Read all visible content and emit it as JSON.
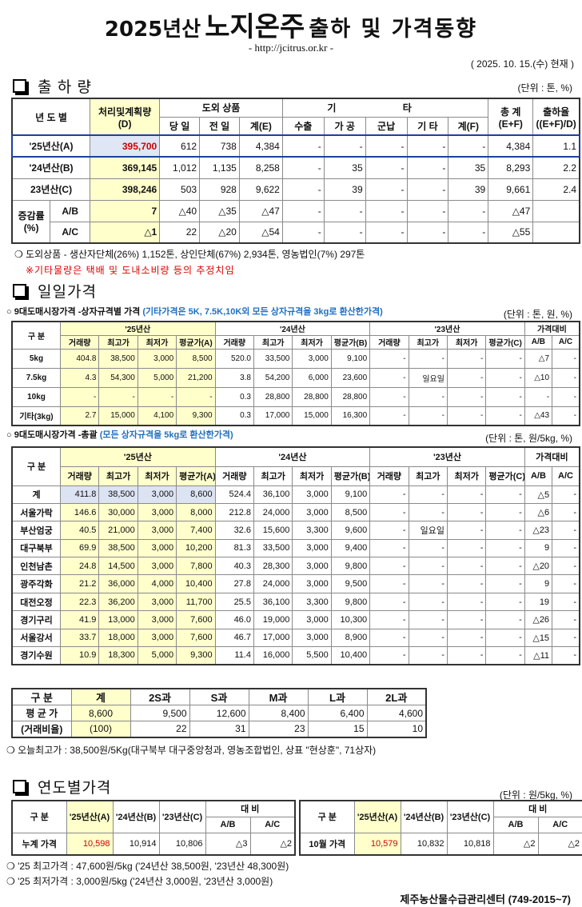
{
  "header": {
    "title_parts": [
      "2025년산",
      "노지온주",
      "출하 및 가격동향"
    ],
    "url": "- http://jcitrus.or.kr -",
    "date": "( 2025.  10. 15.(수) 현재 )"
  },
  "shipment": {
    "heading": "출 하 량",
    "unit": "(단위 : 톤, %)",
    "columns": {
      "year": "년 도 별",
      "plan": [
        "처리및계획량",
        "(D)"
      ],
      "outside": "도외 상품",
      "outside_cols": [
        "당 일",
        "전 일",
        "계(E)"
      ],
      "other": "기 타",
      "other_cols": [
        "수출",
        "가 공",
        "군납",
        "기 타",
        "계(F)"
      ],
      "total": [
        "총 계",
        "(E+F)"
      ],
      "rate": [
        "출하율",
        "((E+F)/D)"
      ]
    },
    "rows": [
      {
        "label": "'25년산(A)",
        "values": [
          "395,700",
          "612",
          "738",
          "4,384",
          "-",
          "-",
          "-",
          "-",
          "-",
          "4,384",
          "1.1"
        ]
      },
      {
        "label": "'24년산(B)",
        "values": [
          "369,145",
          "1,012",
          "1,135",
          "8,258",
          "-",
          "35",
          "-",
          "-",
          "35",
          "8,293",
          "2.2"
        ]
      },
      {
        "label": "23년산(C)",
        "values": [
          "398,246",
          "503",
          "928",
          "9,622",
          "-",
          "39",
          "-",
          "-",
          "39",
          "9,661",
          "2.4"
        ]
      }
    ],
    "change": {
      "title": "증감률",
      "unit": "(%)",
      "rows": [
        {
          "label": "A/B",
          "values": [
            "7",
            "△40",
            "△35",
            "△47",
            "-",
            "-",
            "-",
            "-",
            "-",
            "△47"
          ]
        },
        {
          "label": "A/C",
          "values": [
            "△1",
            "22",
            "△20",
            "△54",
            "-",
            "-",
            "-",
            "-",
            "-",
            "△55"
          ]
        }
      ]
    },
    "notes": [
      "❍ 도외상품 - 생산자단체(26%) 1,152톤, 상인단체(67%) 2,934톤, 영농법인(7%) 297톤",
      "※기타물량은 택배 및 도내소비량 등의 추정치임"
    ]
  },
  "daily": {
    "heading": "일일가격",
    "by_size": {
      "title": "○ 9대도매시장가격 -상자규격별 가격",
      "note": "(기타가격은 5K, 7.5K,10K외 모든 상자규격을 3kg로 환산한가격)",
      "unit": "(단위 : 톤, 원, %)",
      "header": {
        "label": "구 분",
        "years": [
          {
            "name": "'25년산",
            "cols": [
              "거래량",
              "최고가",
              "최저가",
              "평균가(A)"
            ]
          },
          {
            "name": "'24년산",
            "cols": [
              "거래량",
              "최고가",
              "최저가",
              "평균가(B)"
            ]
          },
          {
            "name": "'23년산",
            "cols": [
              "거래량",
              "최고가",
              "최저가",
              "평균가(C)"
            ]
          }
        ],
        "compare": "가격대비",
        "compare_cols": [
          "A/B",
          "A/C"
        ]
      },
      "rows": [
        {
          "label": "5kg",
          "values": [
            "404.8",
            "38,500",
            "3,000",
            "8,500",
            "520.0",
            "33,500",
            "3,000",
            "9,100",
            "-",
            "-",
            "-",
            "-",
            "△7",
            "-"
          ]
        },
        {
          "label": "7.5kg",
          "values": [
            "4.3",
            "54,300",
            "5,000",
            "21,200",
            "3.8",
            "54,200",
            "6,000",
            "23,600",
            "-",
            "일요일",
            "-",
            "-",
            "△10",
            "-"
          ]
        },
        {
          "label": "10kg",
          "values": [
            "-",
            "-",
            "-",
            "-",
            "0.3",
            "28,800",
            "28,800",
            "28,800",
            "-",
            "-",
            "-",
            "-",
            "-",
            "-"
          ]
        },
        {
          "label": "기타(3kg)",
          "values": [
            "2.7",
            "15,000",
            "4,100",
            "9,300",
            "0.3",
            "17,000",
            "15,000",
            "16,300",
            "-",
            "-",
            "-",
            "-",
            "△43",
            "-"
          ]
        }
      ]
    },
    "summary": {
      "title": "○ 9대도매시장가격 -총괄",
      "note": "(모든 상자규격을 5kg로 환산한가격)",
      "unit": "(단위 : 톤, 원/5kg, %)",
      "header": {
        "label": "구 분",
        "years": [
          {
            "name": "'25년산",
            "cols": [
              "거래량",
              "최고가",
              "최저가",
              "평균가(A)"
            ]
          },
          {
            "name": "'24년산",
            "cols": [
              "거래량",
              "최고가",
              "최저가",
              "평균가(B)"
            ]
          },
          {
            "name": "'23년산",
            "cols": [
              "거래량",
              "최고가",
              "최저가",
              "평균가(C)"
            ]
          }
        ],
        "compare": "가격대비",
        "compare_cols": [
          "A/B",
          "A/C"
        ]
      },
      "rows": [
        {
          "label": "계",
          "values": [
            "411.8",
            "38,500",
            "3,000",
            "8,600",
            "524.4",
            "36,100",
            "3,000",
            "9,100",
            "-",
            "-",
            "-",
            "-",
            "△5",
            "-"
          ]
        },
        {
          "label": "서울가락",
          "values": [
            "146.6",
            "30,000",
            "3,000",
            "8,000",
            "212.8",
            "24,000",
            "3,000",
            "8,500",
            "-",
            "-",
            "-",
            "-",
            "△6",
            "-"
          ]
        },
        {
          "label": "부산엄궁",
          "values": [
            "40.5",
            "21,000",
            "3,000",
            "7,400",
            "32.6",
            "15,600",
            "3,300",
            "9,600",
            "-",
            "일요일",
            "-",
            "-",
            "△23",
            "-"
          ]
        },
        {
          "label": "대구북부",
          "values": [
            "69.9",
            "38,500",
            "3,000",
            "10,200",
            "81.3",
            "33,500",
            "3,000",
            "9,400",
            "-",
            "-",
            "-",
            "-",
            "9",
            "-"
          ]
        },
        {
          "label": "인천남촌",
          "values": [
            "24.8",
            "14,500",
            "3,000",
            "7,800",
            "40.3",
            "28,300",
            "3,000",
            "9,800",
            "-",
            "-",
            "-",
            "-",
            "△20",
            "-"
          ]
        },
        {
          "label": "광주각화",
          "values": [
            "21.2",
            "36,000",
            "4,000",
            "10,400",
            "27.8",
            "24,000",
            "3,000",
            "9,500",
            "-",
            "-",
            "-",
            "-",
            "9",
            "-"
          ]
        },
        {
          "label": "대전오정",
          "values": [
            "22.3",
            "36,200",
            "3,000",
            "11,700",
            "25.5",
            "36,100",
            "3,300",
            "9,800",
            "-",
            "-",
            "-",
            "-",
            "19",
            "-"
          ]
        },
        {
          "label": "경기구리",
          "values": [
            "41.9",
            "13,000",
            "3,000",
            "7,600",
            "46.0",
            "19,000",
            "3,000",
            "10,300",
            "-",
            "-",
            "-",
            "-",
            "△26",
            "-"
          ]
        },
        {
          "label": "서울강서",
          "values": [
            "33.7",
            "18,000",
            "3,000",
            "7,600",
            "46.7",
            "17,000",
            "3,000",
            "8,900",
            "-",
            "-",
            "-",
            "-",
            "△15",
            "-"
          ]
        },
        {
          "label": "경기수원",
          "values": [
            "10.9",
            "18,300",
            "5,000",
            "9,300",
            "11.4",
            "16,000",
            "5,500",
            "10,400",
            "-",
            "-",
            "-",
            "-",
            "△11",
            "-"
          ]
        }
      ]
    },
    "size_table": {
      "header": [
        "구  분",
        "계",
        "2S과",
        "S과",
        "M과",
        "L과",
        "2L과"
      ],
      "rows": [
        {
          "label": "평 균 가",
          "values": [
            "8,600",
            "9,500",
            "12,600",
            "8,400",
            "6,400",
            "4,600"
          ]
        },
        {
          "label": "(거래비율)",
          "values": [
            "(100)",
            "22",
            "31",
            "23",
            "15",
            "10"
          ]
        }
      ]
    },
    "note": "❍ 오늘최고가 : 38,500원/5Kg(대구북부 대구중앙청과, 영농조합법인, 상표 \"현상훈\", 71상자)"
  },
  "yearly": {
    "heading": "연도별가격",
    "unit": "(단위 : 원/5kg, %)",
    "tables": [
      {
        "header": {
          "label": "구  분",
          "years": [
            "'25년산(A)",
            "'24년산(B)",
            "'23년산(C)"
          ],
          "compare": "대  비",
          "compare_cols": [
            "A/B",
            "A/C"
          ]
        },
        "row": {
          "label": "누계 가격",
          "values": [
            "10,598",
            "10,914",
            "10,806",
            "△3",
            "△2"
          ]
        }
      },
      {
        "header": {
          "label": "구  분",
          "years": [
            "'25년산(A)",
            "'24년산(B)",
            "'23년산(C)"
          ],
          "compare": "대  비",
          "compare_cols": [
            "A/B",
            "A/C"
          ]
        },
        "row": {
          "label": "10월 가격",
          "values": [
            "10,579",
            "10,832",
            "10,818",
            "△2",
            "△2"
          ]
        }
      }
    ],
    "notes": [
      "❍ '25 최고가격 : 47,600원/5kg ('24년산 38,500원, '23년산 48,300원)",
      "❍ '25 최저가격 :  3,000원/5kg ('24년산  3,000원, '23년산  3,000원)"
    ]
  },
  "footer": "제주농산물수급관리센터 (749-2015~7)"
}
